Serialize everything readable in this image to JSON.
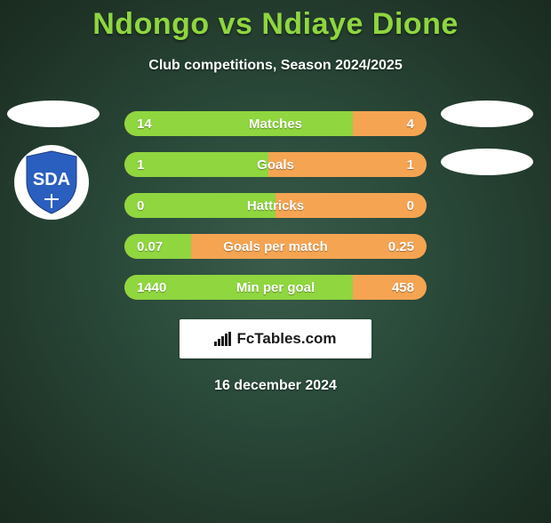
{
  "title": "Ndongo vs Ndiaye Dione",
  "subtitle": "Club competitions, Season 2024/2025",
  "footer_brand": "FcTables.com",
  "footer_date": "16 december 2024",
  "colors": {
    "left_bar": "#8fd63f",
    "right_bar": "#f5a452",
    "title": "#8fd63f",
    "text": "#ffffff",
    "card_bg": "#ffffff"
  },
  "stats": [
    {
      "label": "Matches",
      "left_val": "14",
      "right_val": "4",
      "left_pct": 75.5
    },
    {
      "label": "Goals",
      "left_val": "1",
      "right_val": "1",
      "left_pct": 47.5
    },
    {
      "label": "Hattricks",
      "left_val": "0",
      "right_val": "0",
      "left_pct": 50
    },
    {
      "label": "Goals per match",
      "left_val": "0.07",
      "right_val": "0.25",
      "left_pct": 22
    },
    {
      "label": "Min per goal",
      "left_val": "1440",
      "right_val": "458",
      "left_pct": 75.5
    }
  ],
  "left_club": {
    "show_oval": true,
    "show_emblem": true,
    "emblem_text": "SDA",
    "emblem_colors": {
      "shield": "#2b5fbf",
      "text": "#ffffff"
    }
  },
  "right_club": {
    "show_ovals": 2
  }
}
